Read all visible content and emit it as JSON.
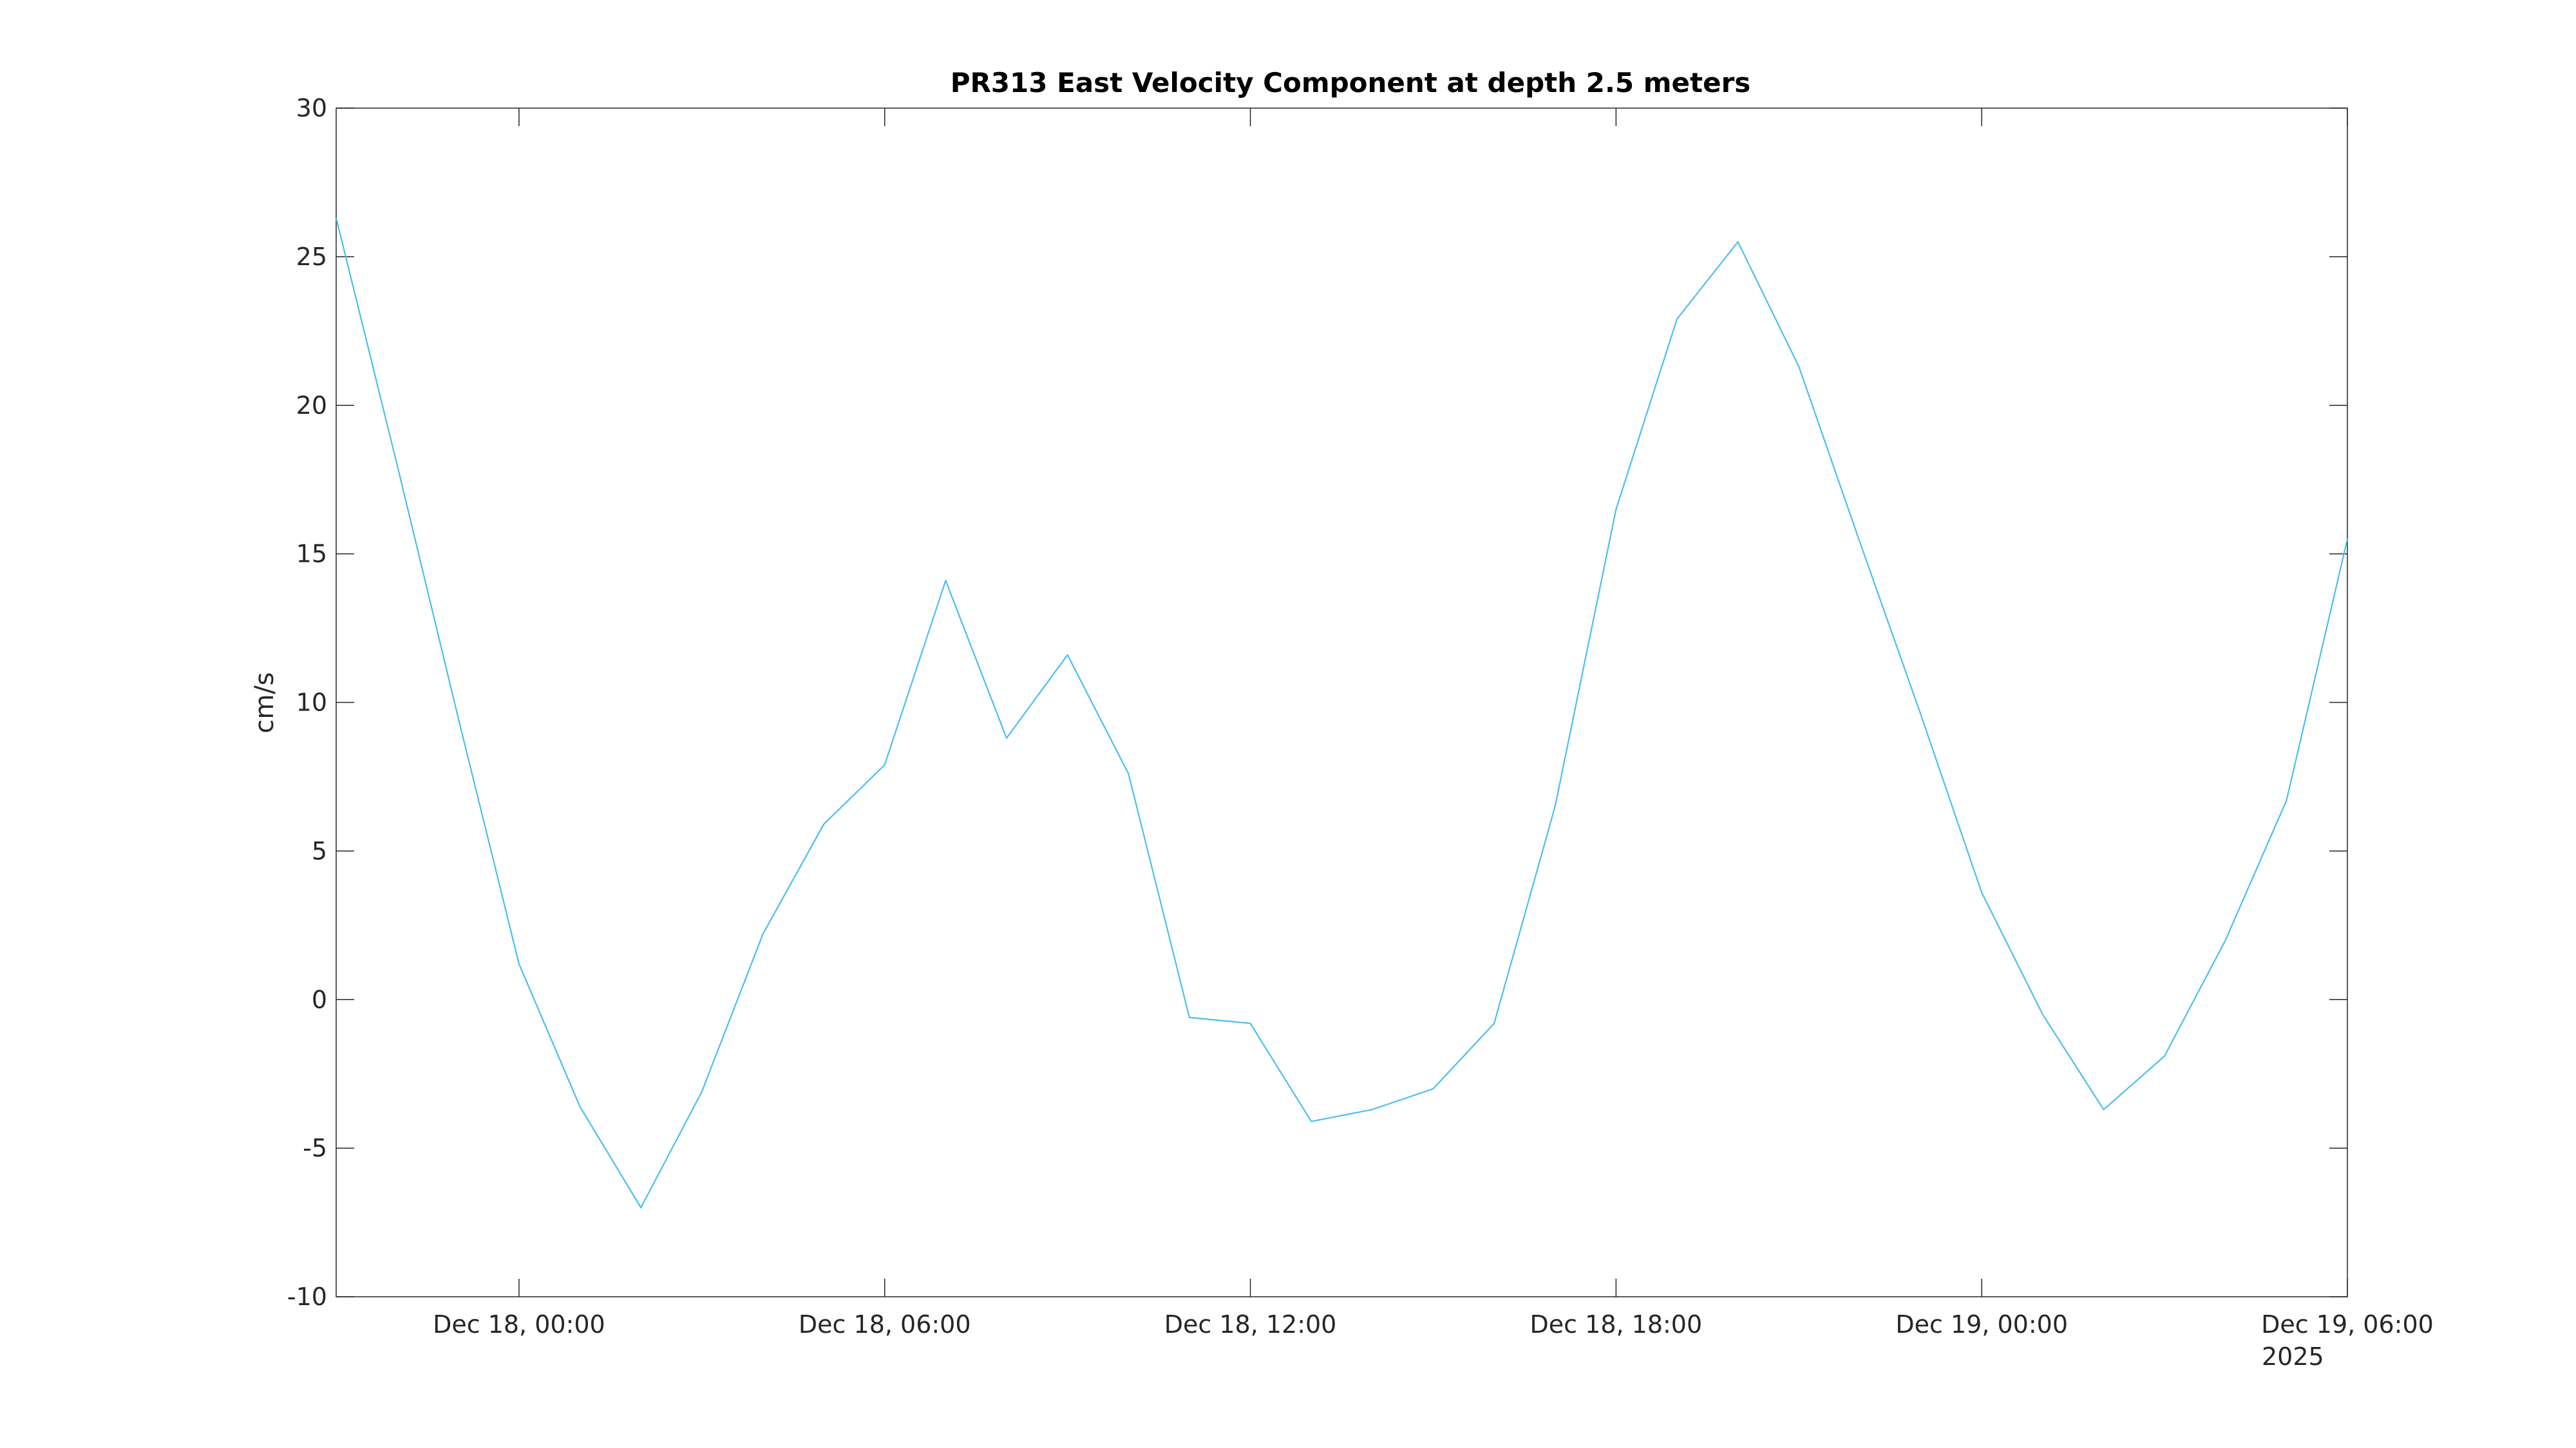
{
  "chart_data": {
    "type": "line",
    "title": "PR313 East Velocity Component at depth 2.5 meters",
    "xlabel": "",
    "ylabel": "cm/s",
    "ylim": [
      -10,
      30
    ],
    "xlim": [
      "2025-12-17 21:00",
      "2025-12-19 06:00"
    ],
    "yticks": [
      -10,
      -5,
      0,
      5,
      10,
      15,
      20,
      25,
      30
    ],
    "xticks": [
      {
        "time": "2025-12-18 00:00",
        "label": "Dec 18, 00:00"
      },
      {
        "time": "2025-12-18 06:00",
        "label": "Dec 18, 06:00"
      },
      {
        "time": "2025-12-18 12:00",
        "label": "Dec 18, 12:00"
      },
      {
        "time": "2025-12-18 18:00",
        "label": "Dec 18, 18:00"
      },
      {
        "time": "2025-12-19 00:00",
        "label": "Dec 19, 00:00"
      },
      {
        "time": "2025-12-19 06:00",
        "label": "Dec 19, 06:00"
      }
    ],
    "year_label": "2025",
    "grid": false,
    "series": [
      {
        "color": "#4DBEEE",
        "x": [
          "2025-12-17 21:00",
          "2025-12-17 22:00",
          "2025-12-17 23:00",
          "2025-12-18 00:00",
          "2025-12-18 01:00",
          "2025-12-18 02:00",
          "2025-12-18 03:00",
          "2025-12-18 04:00",
          "2025-12-18 05:00",
          "2025-12-18 06:00",
          "2025-12-18 07:00",
          "2025-12-18 08:00",
          "2025-12-18 09:00",
          "2025-12-18 10:00",
          "2025-12-18 11:00",
          "2025-12-18 12:00",
          "2025-12-18 13:00",
          "2025-12-18 14:00",
          "2025-12-18 15:00",
          "2025-12-18 16:00",
          "2025-12-18 17:00",
          "2025-12-18 18:00",
          "2025-12-18 19:00",
          "2025-12-18 20:00",
          "2025-12-18 21:00",
          "2025-12-18 22:00",
          "2025-12-18 23:00",
          "2025-12-19 00:00",
          "2025-12-19 01:00",
          "2025-12-19 02:00",
          "2025-12-19 03:00",
          "2025-12-19 04:00",
          "2025-12-19 05:00",
          "2025-12-19 06:00"
        ],
        "y": [
          26.3,
          18.0,
          9.5,
          1.2,
          -3.6,
          -7.0,
          -3.1,
          2.2,
          5.9,
          7.9,
          14.1,
          8.8,
          11.6,
          7.6,
          -0.6,
          -0.8,
          -4.1,
          -3.7,
          -3.0,
          -0.8,
          6.5,
          16.5,
          22.9,
          25.5,
          21.3,
          15.4,
          9.6,
          3.6,
          -0.5,
          -3.7,
          -1.9,
          2.0,
          6.7,
          15.5
        ]
      }
    ]
  }
}
